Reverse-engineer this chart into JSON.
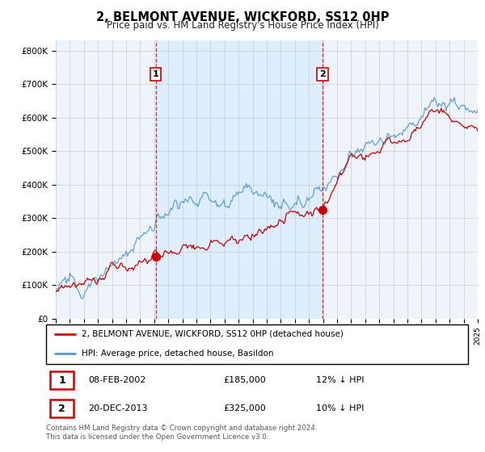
{
  "title": "2, BELMONT AVENUE, WICKFORD, SS12 0HP",
  "subtitle": "Price paid vs. HM Land Registry's House Price Index (HPI)",
  "ylim": [
    0,
    830000
  ],
  "yticks": [
    0,
    100000,
    200000,
    300000,
    400000,
    500000,
    600000,
    700000,
    800000
  ],
  "ytick_labels": [
    "£0",
    "£100K",
    "£200K",
    "£300K",
    "£400K",
    "£500K",
    "£600K",
    "£700K",
    "£800K"
  ],
  "sale1_year": 2002.1,
  "sale1_price": 185000,
  "sale2_year": 2013.97,
  "sale2_price": 325000,
  "red_line_color": "#cc0000",
  "blue_line_color": "#5599cc",
  "shade_color": "#ddeeff",
  "dashed_line_color": "#cc0000",
  "grid_color": "#cccccc",
  "background_color": "#eef4fa",
  "legend_label_red": "2, BELMONT AVENUE, WICKFORD, SS12 0HP (detached house)",
  "legend_label_blue": "HPI: Average price, detached house, Basildon",
  "table_row1": [
    "1",
    "08-FEB-2002",
    "£185,000",
    "12% ↓ HPI"
  ],
  "table_row2": [
    "2",
    "20-DEC-2013",
    "£325,000",
    "10% ↓ HPI"
  ],
  "footer": "Contains HM Land Registry data © Crown copyright and database right 2024.\nThis data is licensed under the Open Government Licence v3.0.",
  "annotation_box_color": "#cc0000",
  "xlim_start": 1995,
  "xlim_end": 2025
}
